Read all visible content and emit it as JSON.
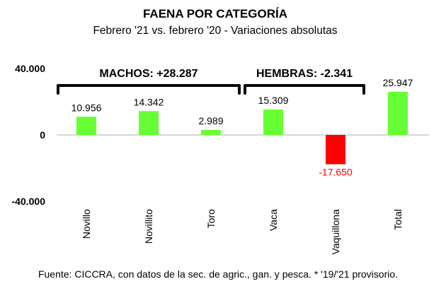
{
  "chart_data": {
    "type": "bar",
    "title": "FAENA POR CATEGORÍA",
    "subtitle": "Febrero '21 vs. febrero '20 - Variaciones absolutas",
    "categories": [
      "Novillo",
      "Novillito",
      "Toro",
      "Vaca",
      "Vaquillona",
      "Total"
    ],
    "values": [
      10956,
      14342,
      2989,
      15309,
      -17650,
      25947
    ],
    "value_labels": [
      "10.956",
      "14.342",
      "2.989",
      "15.309",
      "-17.650",
      "25.947"
    ],
    "ylim": [
      -40000,
      40000
    ],
    "yticks": [
      40000,
      0,
      -40000
    ],
    "ytick_labels": [
      "40.000",
      "0",
      "-40.000"
    ],
    "grid": false,
    "colors": {
      "positive": "#66ff33",
      "negative": "#ff0000",
      "negative_label": "#ff0000"
    },
    "groups": [
      {
        "label": "MACHOS: +28.287",
        "from": 0,
        "to": 2
      },
      {
        "label": "HEMBRAS: -2.341",
        "from": 3,
        "to": 4
      }
    ],
    "source": "Fuente: CICCRA, con datos de la sec. de agric., gan. y pesca. * '19/'21 provisorio."
  }
}
